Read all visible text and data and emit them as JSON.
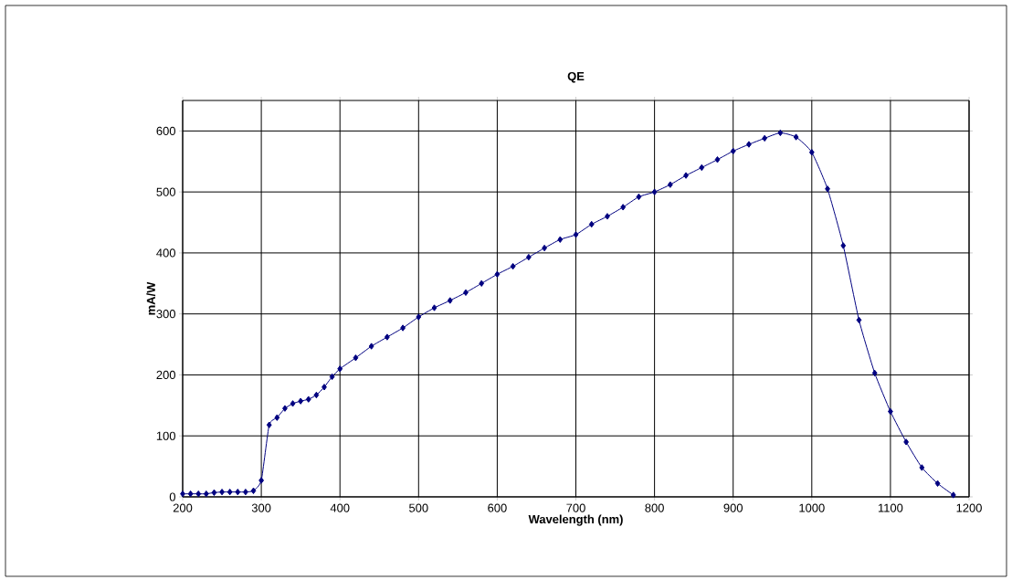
{
  "chart_data": {
    "type": "line",
    "title": "QE",
    "xlabel": "Wavelength (nm)",
    "ylabel": "mA/W",
    "x": [
      200,
      210,
      220,
      230,
      240,
      250,
      260,
      270,
      280,
      290,
      300,
      310,
      320,
      330,
      340,
      350,
      360,
      370,
      380,
      390,
      400,
      420,
      440,
      460,
      480,
      500,
      520,
      540,
      560,
      580,
      600,
      620,
      640,
      660,
      680,
      700,
      720,
      740,
      760,
      780,
      800,
      820,
      840,
      860,
      880,
      900,
      920,
      940,
      960,
      980,
      1000,
      1020,
      1040,
      1060,
      1080,
      1100,
      1120,
      1140,
      1160,
      1180
    ],
    "series": [
      {
        "color": "#000080",
        "values": [
          5,
          5,
          5,
          5,
          7,
          8,
          8,
          8,
          8,
          10,
          27,
          118,
          130,
          145,
          153,
          157,
          160,
          167,
          180,
          197,
          210,
          228,
          247,
          262,
          277,
          295,
          310,
          322,
          335,
          350,
          365,
          378,
          393,
          408,
          422,
          430,
          447,
          460,
          475,
          492,
          500,
          512,
          527,
          540,
          553,
          567,
          578,
          588,
          597,
          590,
          565,
          505,
          412,
          290,
          203,
          140,
          90,
          48,
          22,
          3
        ]
      }
    ],
    "xlim": [
      200,
      1200
    ],
    "xticks": [
      200,
      300,
      400,
      500,
      600,
      700,
      800,
      900,
      1000,
      1100,
      1200
    ],
    "ylim": [
      0,
      650
    ],
    "yticks": [
      0,
      100,
      200,
      300,
      400,
      500,
      600
    ],
    "grid": true,
    "marker": "diamond",
    "line_style": "solid"
  }
}
